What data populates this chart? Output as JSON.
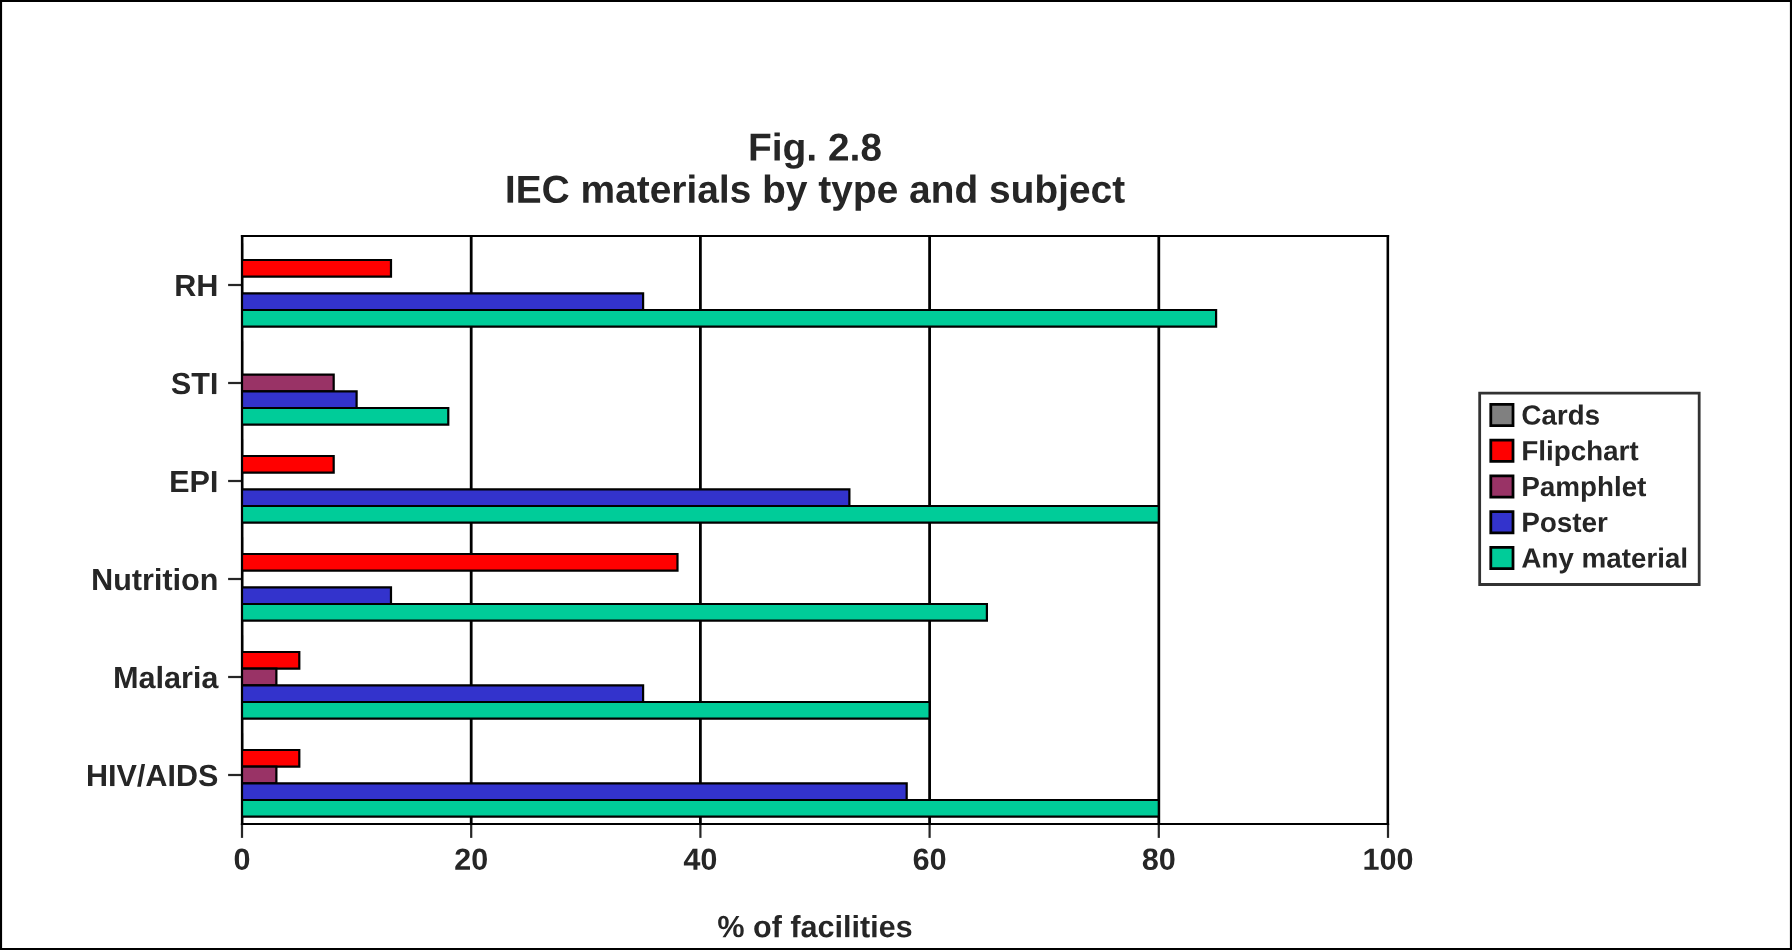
{
  "chart_data": {
    "type": "bar",
    "orientation": "horizontal",
    "title": "Fig. 2.8\nIEC materials by type and subject",
    "xlabel": "% of facilities",
    "categories": [
      "RH",
      "STI",
      "EPI",
      "Nutrition",
      "Malaria",
      "HIV/AIDS"
    ],
    "series": [
      {
        "name": "Cards",
        "color": "#808080",
        "values": [
          0,
          0,
          0,
          0,
          0,
          0
        ]
      },
      {
        "name": "Flipchart",
        "color": "#ff0000",
        "values": [
          13,
          0,
          8,
          38,
          5,
          5
        ]
      },
      {
        "name": "Pamphlet",
        "color": "#993366",
        "values": [
          0,
          8,
          0,
          0,
          3,
          3
        ]
      },
      {
        "name": "Poster",
        "color": "#3333cc",
        "values": [
          35,
          10,
          53,
          13,
          35,
          58
        ]
      },
      {
        "name": "Any material",
        "color": "#00cc99",
        "values": [
          85,
          18,
          80,
          65,
          60,
          80
        ]
      }
    ],
    "xlim": [
      0,
      100
    ],
    "xticks": [
      0,
      20,
      40,
      60,
      80,
      100
    ],
    "grid": "x",
    "legend": "right"
  }
}
